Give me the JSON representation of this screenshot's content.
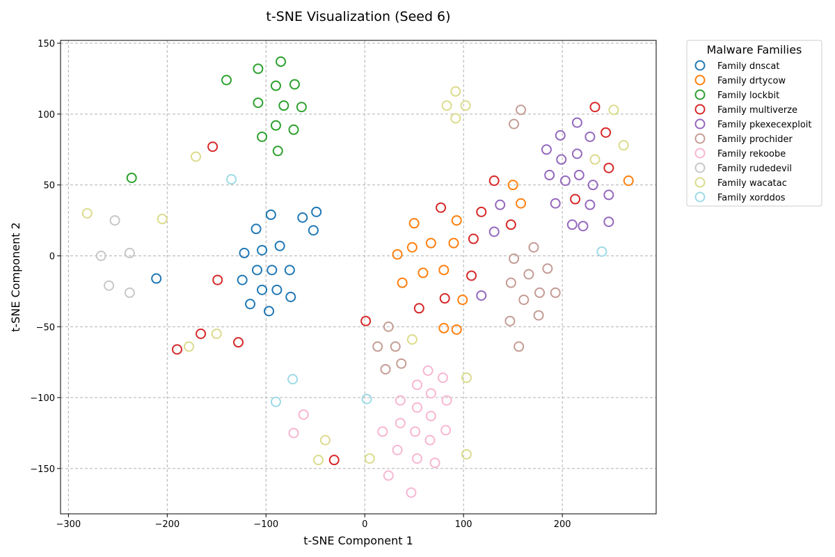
{
  "chart_data": {
    "type": "scatter",
    "title": "t-SNE Visualization (Seed 6)",
    "xlabel": "t-SNE Component 1",
    "ylabel": "t-SNE Component 2",
    "xlim": [
      -308,
      295
    ],
    "ylim": [
      -182,
      152
    ],
    "x_ticks": [
      -300,
      -200,
      -100,
      0,
      100,
      200
    ],
    "y_ticks": [
      -150,
      -100,
      -50,
      0,
      50,
      100,
      150
    ],
    "x_tick_labels": [
      "−300",
      "−200",
      "−100",
      "0",
      "100",
      "200"
    ],
    "y_tick_labels": [
      "−150",
      "−100",
      "−50",
      "0",
      "50",
      "100",
      "150"
    ],
    "grid": true,
    "legend": {
      "title": "Malware Families",
      "placement": "outside-right-top"
    },
    "series": [
      {
        "name": "Family dnscat",
        "color": "#1f77b4",
        "points": [
          [
            -95,
            29
          ],
          [
            -63,
            27
          ],
          [
            -49,
            31
          ],
          [
            -110,
            19
          ],
          [
            -52,
            18
          ],
          [
            -122,
            2
          ],
          [
            -104,
            4
          ],
          [
            -86,
            7
          ],
          [
            -109,
            -10
          ],
          [
            -94,
            -10
          ],
          [
            -76,
            -10
          ],
          [
            -124,
            -17
          ],
          [
            -211,
            -16
          ],
          [
            -104,
            -24
          ],
          [
            -89,
            -24
          ],
          [
            -75,
            -29
          ],
          [
            -116,
            -34
          ],
          [
            -97,
            -39
          ]
        ]
      },
      {
        "name": "Family drtycow",
        "color": "#ff7f0e",
        "points": [
          [
            150,
            50
          ],
          [
            158,
            37
          ],
          [
            267,
            53
          ],
          [
            50,
            23
          ],
          [
            93,
            25
          ],
          [
            48,
            6
          ],
          [
            67,
            9
          ],
          [
            90,
            9
          ],
          [
            33,
            1
          ],
          [
            59,
            -12
          ],
          [
            80,
            -10
          ],
          [
            38,
            -19
          ],
          [
            99,
            -31
          ],
          [
            80,
            -51
          ],
          [
            93,
            -52
          ]
        ]
      },
      {
        "name": "Family lockbit",
        "color": "#2ca02c",
        "points": [
          [
            -85,
            137
          ],
          [
            -140,
            124
          ],
          [
            -108,
            132
          ],
          [
            -90,
            120
          ],
          [
            -71,
            121
          ],
          [
            -108,
            108
          ],
          [
            -82,
            106
          ],
          [
            -64,
            105
          ],
          [
            -90,
            92
          ],
          [
            -72,
            89
          ],
          [
            -104,
            84
          ],
          [
            -88,
            74
          ],
          [
            -236,
            55
          ]
        ]
      },
      {
        "name": "Family multiverze",
        "color": "#d62728",
        "points": [
          [
            233,
            105
          ],
          [
            244,
            87
          ],
          [
            -154,
            77
          ],
          [
            247,
            62
          ],
          [
            131,
            53
          ],
          [
            213,
            40
          ],
          [
            77,
            34
          ],
          [
            118,
            31
          ],
          [
            148,
            22
          ],
          [
            110,
            12
          ],
          [
            108,
            -14
          ],
          [
            -149,
            -17
          ],
          [
            81,
            -30
          ],
          [
            55,
            -37
          ],
          [
            1,
            -46
          ],
          [
            -166,
            -55
          ],
          [
            -128,
            -61
          ],
          [
            -190,
            -66
          ],
          [
            -31,
            -144
          ]
        ]
      },
      {
        "name": "Family pkexecexploit",
        "color": "#9467bd",
        "points": [
          [
            215,
            94
          ],
          [
            198,
            85
          ],
          [
            228,
            84
          ],
          [
            184,
            75
          ],
          [
            215,
            72
          ],
          [
            199,
            68
          ],
          [
            187,
            57
          ],
          [
            217,
            57
          ],
          [
            203,
            53
          ],
          [
            231,
            50
          ],
          [
            247,
            43
          ],
          [
            137,
            36
          ],
          [
            193,
            37
          ],
          [
            228,
            36
          ],
          [
            210,
            22
          ],
          [
            221,
            21
          ],
          [
            247,
            24
          ],
          [
            131,
            17
          ],
          [
            118,
            -28
          ]
        ]
      },
      {
        "name": "Family prochider",
        "color": "#c49c94",
        "points": [
          [
            158,
            103
          ],
          [
            151,
            93
          ],
          [
            171,
            6
          ],
          [
            151,
            -2
          ],
          [
            185,
            -9
          ],
          [
            166,
            -13
          ],
          [
            148,
            -19
          ],
          [
            177,
            -26
          ],
          [
            193,
            -26
          ],
          [
            161,
            -31
          ],
          [
            176,
            -42
          ],
          [
            147,
            -46
          ],
          [
            24,
            -50
          ],
          [
            13,
            -64
          ],
          [
            31,
            -64
          ],
          [
            156,
            -64
          ],
          [
            37,
            -76
          ],
          [
            21,
            -80
          ]
        ]
      },
      {
        "name": "Family rekoobe",
        "color": "#f7b6d2",
        "points": [
          [
            64,
            -81
          ],
          [
            79,
            -86
          ],
          [
            53,
            -91
          ],
          [
            67,
            -97
          ],
          [
            36,
            -102
          ],
          [
            83,
            -102
          ],
          [
            53,
            -107
          ],
          [
            67,
            -113
          ],
          [
            36,
            -118
          ],
          [
            18,
            -124
          ],
          [
            51,
            -124
          ],
          [
            82,
            -123
          ],
          [
            66,
            -130
          ],
          [
            -72,
            -125
          ],
          [
            -62,
            -112
          ],
          [
            33,
            -137
          ],
          [
            53,
            -143
          ],
          [
            71,
            -146
          ],
          [
            24,
            -155
          ],
          [
            47,
            -167
          ]
        ]
      },
      {
        "name": "Family rudedevil",
        "color": "#c7c7c7",
        "points": [
          [
            -253,
            25
          ],
          [
            -238,
            2
          ],
          [
            -267,
            0
          ],
          [
            -259,
            -21
          ],
          [
            -238,
            -26
          ]
        ]
      },
      {
        "name": "Family wacatac",
        "color": "#dbdb8d",
        "points": [
          [
            92,
            116
          ],
          [
            83,
            106
          ],
          [
            102,
            106
          ],
          [
            92,
            97
          ],
          [
            252,
            103
          ],
          [
            262,
            78
          ],
          [
            233,
            68
          ],
          [
            -171,
            70
          ],
          [
            -281,
            30
          ],
          [
            -205,
            26
          ],
          [
            -150,
            -55
          ],
          [
            -178,
            -64
          ],
          [
            48,
            -59
          ],
          [
            103,
            -86
          ],
          [
            -40,
            -130
          ],
          [
            -47,
            -144
          ],
          [
            5,
            -143
          ],
          [
            103,
            -140
          ]
        ]
      },
      {
        "name": "Family xorddos",
        "color": "#9edae5",
        "points": [
          [
            -135,
            54
          ],
          [
            240,
            3
          ],
          [
            -73,
            -87
          ],
          [
            -90,
            -103
          ],
          [
            2,
            -101
          ]
        ]
      }
    ]
  }
}
